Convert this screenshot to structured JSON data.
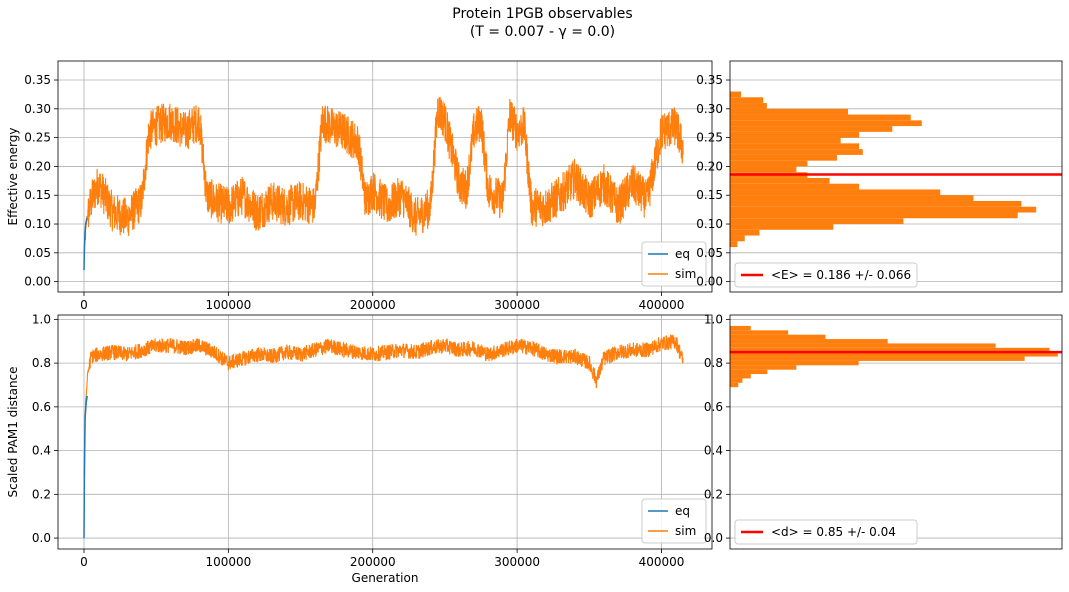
{
  "title": {
    "line1": "Protein 1PGB observables",
    "line2": "(T = 0.007 - γ = 0.0)"
  },
  "colors": {
    "eq": "#1f77b4",
    "sim": "#ff7f0e",
    "mean_line": "#ff0000",
    "grid": "#b0b0b0"
  },
  "chart_data": [
    {
      "type": "line",
      "ylabel": "Effective energy",
      "xlabel": "",
      "xlim": [
        -18000,
        435000
      ],
      "ylim": [
        -0.018,
        0.383
      ],
      "xticks": [
        0,
        100000,
        200000,
        300000,
        400000
      ],
      "xtick_labels": [
        "0",
        "100000",
        "200000",
        "300000",
        "400000"
      ],
      "yticks": [
        0.0,
        0.05,
        0.1,
        0.15,
        0.2,
        0.25,
        0.3,
        0.35
      ],
      "ytick_labels": [
        "0.00",
        "0.05",
        "0.10",
        "0.15",
        "0.20",
        "0.25",
        "0.30",
        "0.35"
      ],
      "grid": true,
      "legend_position": "lower-right",
      "series": [
        {
          "name": "eq",
          "x": [
            0,
            200,
            600,
            1200,
            2000
          ],
          "y": [
            0.02,
            0.05,
            0.08,
            0.1,
            0.11
          ]
        },
        {
          "name": "sim",
          "x": [
            0,
            2000,
            5000,
            10000,
            20000,
            30000,
            40000,
            45000,
            50000,
            60000,
            70000,
            80000,
            85000,
            90000,
            100000,
            110000,
            120000,
            130000,
            140000,
            150000,
            160000,
            165000,
            170000,
            180000,
            190000,
            195000,
            200000,
            210000,
            220000,
            230000,
            240000,
            245000,
            250000,
            260000,
            265000,
            270000,
            275000,
            280000,
            290000,
            295000,
            300000,
            305000,
            310000,
            320000,
            330000,
            340000,
            350000,
            360000,
            370000,
            380000,
            390000,
            400000,
            410000,
            415000
          ],
          "y": [
            0.05,
            0.11,
            0.14,
            0.17,
            0.12,
            0.11,
            0.14,
            0.26,
            0.27,
            0.28,
            0.26,
            0.28,
            0.15,
            0.14,
            0.13,
            0.15,
            0.12,
            0.14,
            0.13,
            0.14,
            0.13,
            0.28,
            0.27,
            0.26,
            0.24,
            0.14,
            0.16,
            0.13,
            0.15,
            0.11,
            0.13,
            0.3,
            0.28,
            0.17,
            0.16,
            0.26,
            0.28,
            0.16,
            0.14,
            0.29,
            0.26,
            0.27,
            0.13,
            0.13,
            0.15,
            0.18,
            0.14,
            0.17,
            0.13,
            0.17,
            0.14,
            0.26,
            0.27,
            0.23
          ],
          "amplitude": 0.035
        }
      ]
    },
    {
      "type": "histogram",
      "orientation": "horizontal",
      "ylim": [
        -0.018,
        0.383
      ],
      "yticks": [
        0.0,
        0.05,
        0.1,
        0.15,
        0.2,
        0.25,
        0.3,
        0.35
      ],
      "ytick_labels": [
        "0.00",
        "0.05",
        "0.10",
        "0.15",
        "0.20",
        "0.25",
        "0.30",
        "0.35"
      ],
      "grid": true,
      "bins": [
        {
          "from": 0.06,
          "to": 0.07,
          "count": 2
        },
        {
          "from": 0.07,
          "to": 0.08,
          "count": 4
        },
        {
          "from": 0.08,
          "to": 0.09,
          "count": 8
        },
        {
          "from": 0.09,
          "to": 0.1,
          "count": 28
        },
        {
          "from": 0.1,
          "to": 0.11,
          "count": 47
        },
        {
          "from": 0.11,
          "to": 0.12,
          "count": 78
        },
        {
          "from": 0.12,
          "to": 0.13,
          "count": 83
        },
        {
          "from": 0.13,
          "to": 0.14,
          "count": 79
        },
        {
          "from": 0.14,
          "to": 0.15,
          "count": 66
        },
        {
          "from": 0.15,
          "to": 0.16,
          "count": 57
        },
        {
          "from": 0.16,
          "to": 0.17,
          "count": 35
        },
        {
          "from": 0.17,
          "to": 0.18,
          "count": 27
        },
        {
          "from": 0.18,
          "to": 0.19,
          "count": 21
        },
        {
          "from": 0.19,
          "to": 0.2,
          "count": 18
        },
        {
          "from": 0.2,
          "to": 0.21,
          "count": 21
        },
        {
          "from": 0.21,
          "to": 0.22,
          "count": 29
        },
        {
          "from": 0.22,
          "to": 0.23,
          "count": 36
        },
        {
          "from": 0.23,
          "to": 0.24,
          "count": 35
        },
        {
          "from": 0.24,
          "to": 0.25,
          "count": 30
        },
        {
          "from": 0.25,
          "to": 0.26,
          "count": 35
        },
        {
          "from": 0.26,
          "to": 0.27,
          "count": 44
        },
        {
          "from": 0.27,
          "to": 0.28,
          "count": 52
        },
        {
          "from": 0.28,
          "to": 0.29,
          "count": 49
        },
        {
          "from": 0.29,
          "to": 0.3,
          "count": 32
        },
        {
          "from": 0.3,
          "to": 0.31,
          "count": 10
        },
        {
          "from": 0.31,
          "to": 0.32,
          "count": 9
        },
        {
          "from": 0.32,
          "to": 0.33,
          "count": 3
        }
      ],
      "xmax": 90,
      "mean": 0.186,
      "legend_position": "lower-left",
      "legend": "<E> = 0.186 +/- 0.066"
    },
    {
      "type": "line",
      "ylabel": "Scaled PAM1 distance",
      "xlabel": "Generation",
      "xlim": [
        -18000,
        435000
      ],
      "ylim": [
        -0.05,
        1.02
      ],
      "xticks": [
        0,
        100000,
        200000,
        300000,
        400000
      ],
      "xtick_labels": [
        "0",
        "100000",
        "200000",
        "300000",
        "400000"
      ],
      "yticks": [
        0.0,
        0.2,
        0.4,
        0.6,
        0.8,
        1.0
      ],
      "ytick_labels": [
        "0.0",
        "0.2",
        "0.4",
        "0.6",
        "0.8",
        "1.0"
      ],
      "grid": true,
      "legend_position": "lower-right",
      "series": [
        {
          "name": "eq",
          "x": [
            0,
            300,
            800,
            1500,
            2200
          ],
          "y": [
            0.0,
            0.28,
            0.55,
            0.62,
            0.65
          ]
        },
        {
          "name": "sim",
          "x": [
            0,
            1000,
            2500,
            5000,
            10000,
            20000,
            30000,
            40000,
            50000,
            60000,
            70000,
            80000,
            90000,
            100000,
            110000,
            120000,
            130000,
            140000,
            150000,
            160000,
            170000,
            180000,
            190000,
            200000,
            210000,
            220000,
            230000,
            240000,
            250000,
            260000,
            270000,
            280000,
            290000,
            300000,
            310000,
            320000,
            330000,
            340000,
            350000,
            355000,
            360000,
            370000,
            380000,
            390000,
            400000,
            410000,
            415000
          ],
          "y": [
            0.3,
            0.6,
            0.75,
            0.83,
            0.84,
            0.85,
            0.84,
            0.86,
            0.88,
            0.88,
            0.87,
            0.88,
            0.85,
            0.8,
            0.82,
            0.84,
            0.83,
            0.85,
            0.84,
            0.86,
            0.88,
            0.86,
            0.85,
            0.84,
            0.85,
            0.86,
            0.85,
            0.87,
            0.88,
            0.86,
            0.87,
            0.84,
            0.86,
            0.88,
            0.87,
            0.84,
            0.83,
            0.83,
            0.8,
            0.72,
            0.82,
            0.85,
            0.86,
            0.86,
            0.89,
            0.9,
            0.81
          ],
          "amplitude": 0.035
        }
      ]
    },
    {
      "type": "histogram",
      "orientation": "horizontal",
      "ylim": [
        -0.05,
        1.02
      ],
      "yticks": [
        0.0,
        0.2,
        0.4,
        0.6,
        0.8,
        1.0
      ],
      "ytick_labels": [
        "0.0",
        "0.2",
        "0.4",
        "0.6",
        "0.8",
        "1.0"
      ],
      "grid": true,
      "bins": [
        {
          "from": 0.69,
          "to": 0.71,
          "count": 2
        },
        {
          "from": 0.71,
          "to": 0.73,
          "count": 3
        },
        {
          "from": 0.73,
          "to": 0.75,
          "count": 5
        },
        {
          "from": 0.75,
          "to": 0.77,
          "count": 9
        },
        {
          "from": 0.77,
          "to": 0.79,
          "count": 16
        },
        {
          "from": 0.79,
          "to": 0.81,
          "count": 31
        },
        {
          "from": 0.81,
          "to": 0.83,
          "count": 71
        },
        {
          "from": 0.83,
          "to": 0.85,
          "count": 79
        },
        {
          "from": 0.85,
          "to": 0.87,
          "count": 77
        },
        {
          "from": 0.87,
          "to": 0.89,
          "count": 64
        },
        {
          "from": 0.89,
          "to": 0.91,
          "count": 38
        },
        {
          "from": 0.91,
          "to": 0.93,
          "count": 23
        },
        {
          "from": 0.93,
          "to": 0.95,
          "count": 14
        },
        {
          "from": 0.95,
          "to": 0.97,
          "count": 5
        }
      ],
      "xmax": 80,
      "mean": 0.85,
      "legend_position": "lower-left",
      "legend": "<d> = 0.85 +/- 0.04"
    }
  ]
}
